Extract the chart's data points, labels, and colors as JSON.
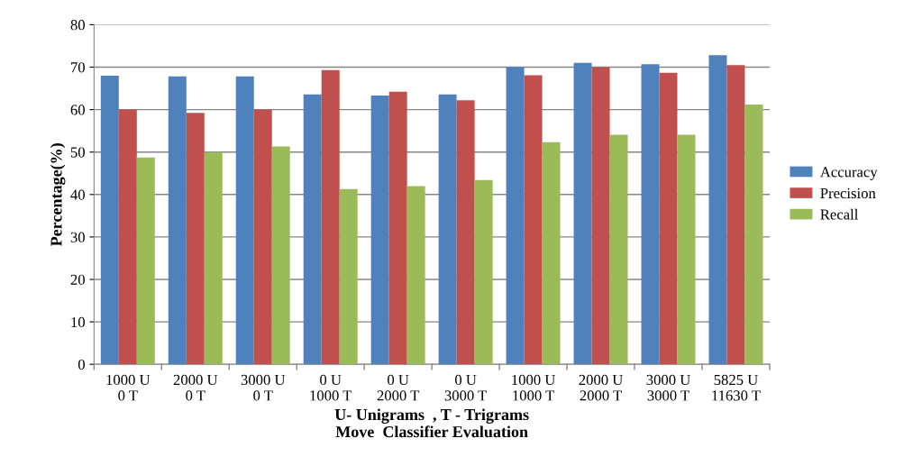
{
  "chart_data": {
    "type": "bar",
    "categories": [
      "1000 U\n0 T",
      "2000 U\n0 T",
      "3000 U\n0 T",
      "0 U\n1000 T",
      "0 U\n2000 T",
      "0 U\n3000 T",
      "1000 U\n1000 T",
      "2000 U\n2000 T",
      "3000 U\n3000 T",
      "5825 U\n11630 T"
    ],
    "series": [
      {
        "name": "Accuracy",
        "color": "#4f81bd",
        "values": [
          68,
          67.8,
          67.8,
          63.6,
          63.3,
          63.6,
          70,
          71,
          70.7,
          72.8
        ]
      },
      {
        "name": "Precision",
        "color": "#c0504d",
        "values": [
          60,
          59.2,
          60,
          69.3,
          64.2,
          62.2,
          68.1,
          70,
          68.7,
          70.5
        ]
      },
      {
        "name": "Recall",
        "color": "#9bbb59",
        "values": [
          48.7,
          50,
          51.3,
          41.3,
          42,
          43.4,
          52.3,
          54.1,
          54.1,
          61.2
        ]
      }
    ],
    "xlabel": "U- Unigrams  , T - Trigrams\nMove  Classifier Evaluation",
    "ylabel": "Percentage(%)",
    "ylim": [
      0,
      80
    ],
    "yticks": [
      0,
      10,
      20,
      30,
      40,
      50,
      60,
      70,
      80
    ],
    "grid": "y",
    "legend": "right"
  }
}
